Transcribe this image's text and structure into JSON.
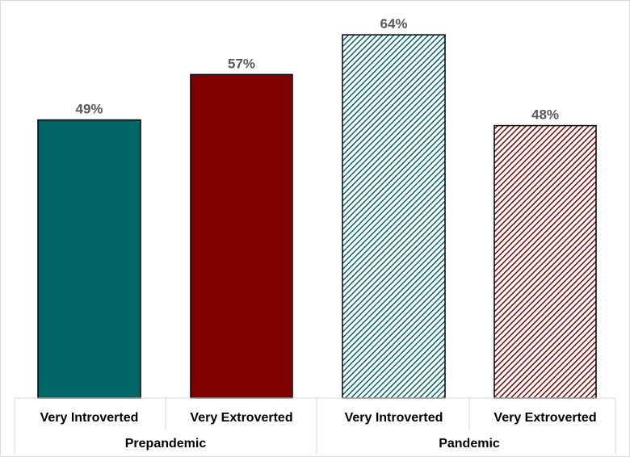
{
  "chart_data": {
    "type": "bar",
    "title": "",
    "xlabel": "",
    "ylabel": "",
    "ylim": [
      0,
      68
    ],
    "grid": false,
    "legend": "none",
    "groups": [
      "Prepandemic",
      "Pandemic"
    ],
    "categories": [
      "Very Introverted",
      "Very Extroverted",
      "Very Introverted",
      "Very Extroverted"
    ],
    "values": [
      49,
      57,
      64,
      48
    ],
    "value_labels": [
      "49%",
      "57%",
      "64%",
      "48%"
    ],
    "bars": [
      {
        "group": "Prepandemic",
        "category": "Very Introverted",
        "value": 49,
        "color": "#006666",
        "pattern": "solid"
      },
      {
        "group": "Prepandemic",
        "category": "Very Extroverted",
        "value": 57,
        "color": "#800000",
        "pattern": "solid"
      },
      {
        "group": "Pandemic",
        "category": "Very Introverted",
        "value": 64,
        "color": "#006666",
        "pattern": "diagonal-hatch"
      },
      {
        "group": "Pandemic",
        "category": "Very Extroverted",
        "value": 48,
        "color": "#800000",
        "pattern": "diagonal-hatch"
      }
    ]
  }
}
